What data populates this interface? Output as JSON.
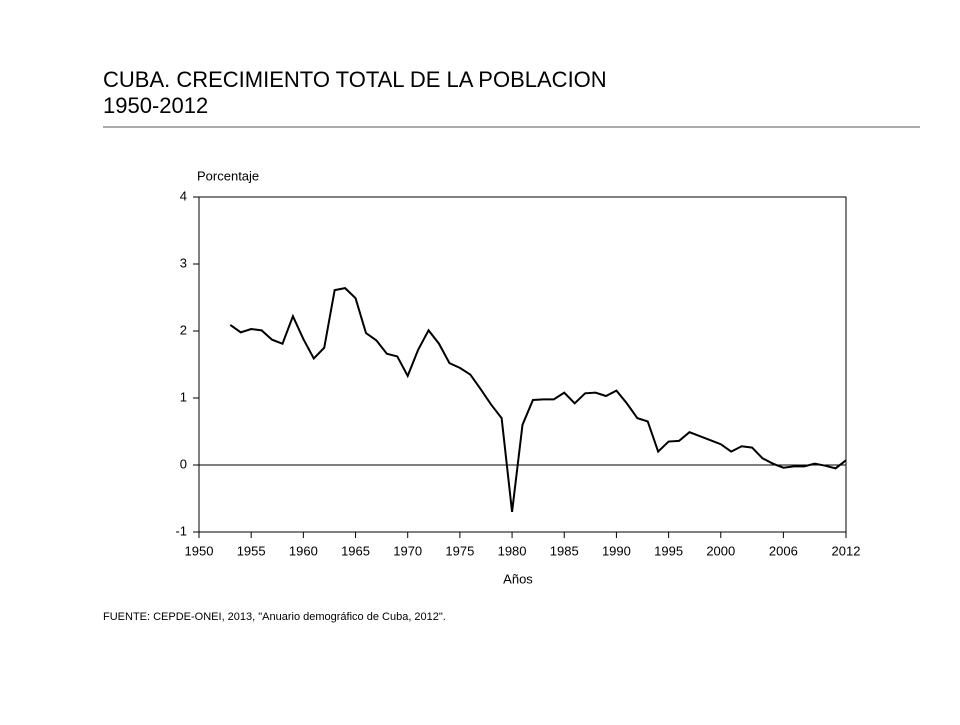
{
  "chart_data": {
    "type": "line",
    "title": [
      "CUBA. CRECIMIENTO TOTAL DE LA POBLACION",
      "1950-2012"
    ],
    "y_label": "Porcentaje",
    "x_label": "Años",
    "source": "FUENTE: CEPDE-ONEI, 2013, \"Anuario demográfico de Cuba, 2012\".",
    "x": [
      1953,
      1954,
      1955,
      1956,
      1957,
      1958,
      1959,
      1960,
      1961,
      1962,
      1963,
      1964,
      1965,
      1966,
      1967,
      1968,
      1969,
      1970,
      1971,
      1972,
      1973,
      1974,
      1975,
      1976,
      1977,
      1978,
      1979,
      1980,
      1981,
      1982,
      1983,
      1984,
      1985,
      1986,
      1987,
      1988,
      1989,
      1990,
      1991,
      1992,
      1993,
      1994,
      1995,
      1996,
      1997,
      1998,
      1999,
      2000,
      2001,
      2002,
      2003,
      2004,
      2005,
      2006,
      2007,
      2008,
      2009,
      2010,
      2011,
      2012
    ],
    "series": [
      {
        "name": "Crecimiento total",
        "color": "#000000",
        "values": [
          2.09,
          1.98,
          2.03,
          2.01,
          1.87,
          1.81,
          2.22,
          1.88,
          1.59,
          1.75,
          2.61,
          2.64,
          2.49,
          1.97,
          1.86,
          1.66,
          1.62,
          1.33,
          1.72,
          2.01,
          1.81,
          1.52,
          1.45,
          1.35,
          1.13,
          0.9,
          0.7,
          -0.7,
          0.6,
          0.97,
          0.98,
          0.98,
          1.08,
          0.92,
          1.07,
          1.08,
          1.03,
          1.11,
          0.92,
          0.7,
          0.65,
          0.2,
          0.35,
          0.36,
          0.49,
          0.43,
          0.37,
          0.31,
          0.2,
          0.28,
          0.26,
          0.1,
          0.02,
          -0.04,
          -0.02,
          -0.02,
          0.02,
          -0.01,
          -0.05,
          0.07
        ]
      }
    ],
    "xlim": [
      1950,
      2012
    ],
    "xticks": [
      1950,
      1955,
      1960,
      1965,
      1970,
      1975,
      1980,
      1985,
      1990,
      1995,
      2000,
      2006,
      2012
    ],
    "ylim": [
      -1,
      4
    ],
    "yticks": [
      -1,
      0,
      1,
      2,
      3,
      4
    ],
    "zero_line": true
  }
}
